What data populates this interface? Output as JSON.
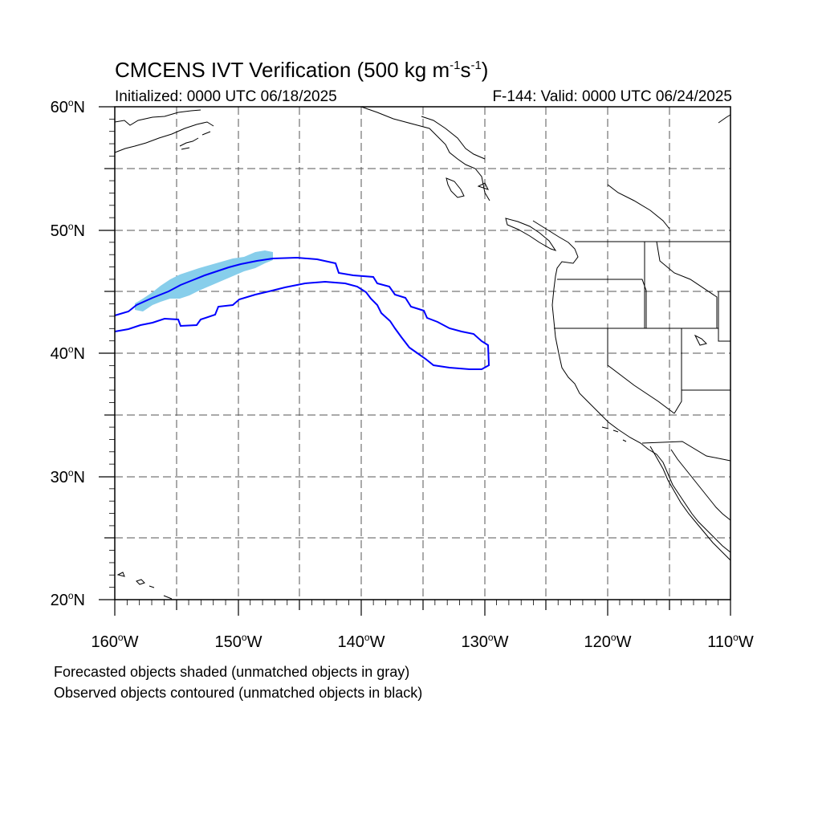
{
  "title": {
    "prefix": "CMCENS IVT Verification (500 kg m",
    "exp1": "-1",
    "mid": "s",
    "exp2": "-1",
    "suffix": ")"
  },
  "initialized_label": "Initialized: 0000 UTC 06/18/2025",
  "valid_label": "F-144: Valid: 0000 UTC 06/24/2025",
  "degree_symbol": "o",
  "lat_labels": [
    {
      "value": "60",
      "hemi": "N"
    },
    {
      "value": "50",
      "hemi": "N"
    },
    {
      "value": "40",
      "hemi": "N"
    },
    {
      "value": "30",
      "hemi": "N"
    },
    {
      "value": "20",
      "hemi": "N"
    }
  ],
  "lon_labels": [
    {
      "value": "160",
      "hemi": "W"
    },
    {
      "value": "150",
      "hemi": "W"
    },
    {
      "value": "140",
      "hemi": "W"
    },
    {
      "value": "130",
      "hemi": "W"
    },
    {
      "value": "120",
      "hemi": "W"
    },
    {
      "value": "110",
      "hemi": "W"
    }
  ],
  "footnotes": {
    "line1": "Forecasted objects shaded (unmatched objects in gray)",
    "line2": "Observed objects contoured (unmatched objects in black)"
  },
  "colors": {
    "forecast_shading": "#87ceeb",
    "observed_contour": "#0000ff",
    "coastline": "#000000",
    "grid": "#555555"
  },
  "map_extent": {
    "lon_min": -160,
    "lon_max": -110,
    "lat_min": 20,
    "lat_max": 60
  }
}
